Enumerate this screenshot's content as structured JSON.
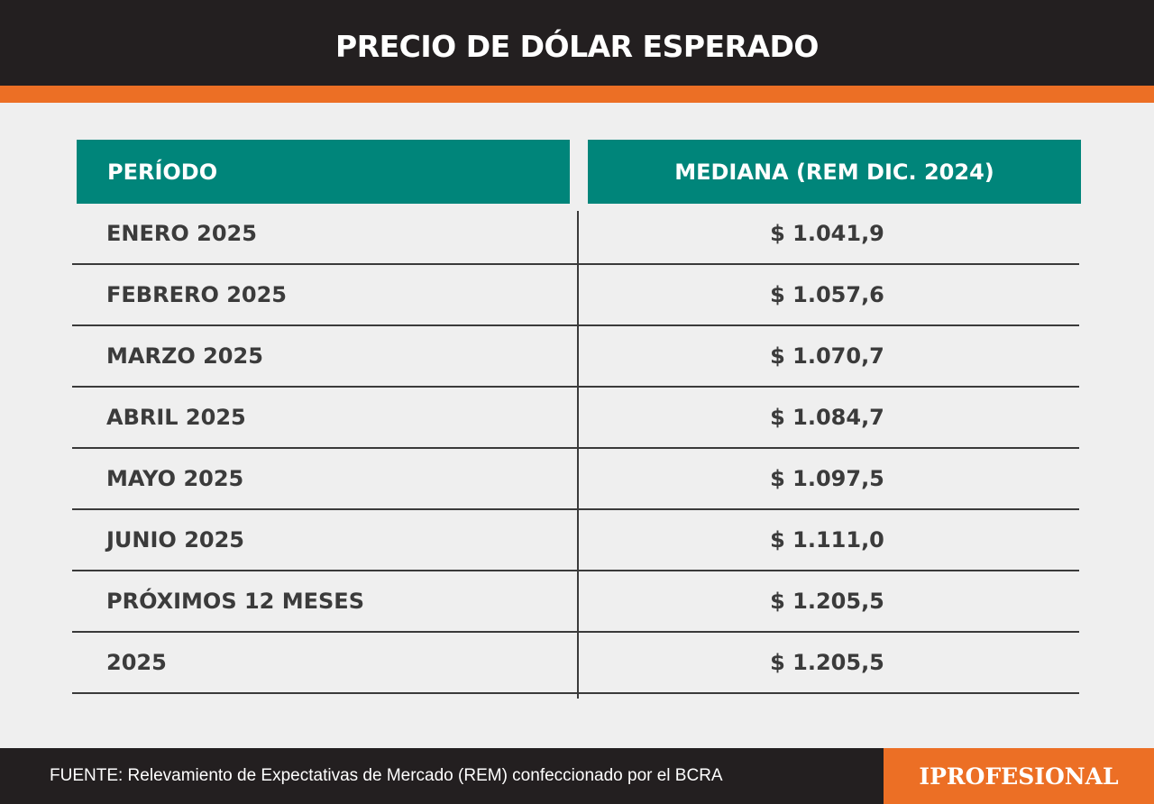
{
  "header": {
    "title": "PRECIO DE DÓLAR ESPERADO"
  },
  "chart_data": {
    "type": "table",
    "title": "PRECIO DE DÓLAR ESPERADO",
    "columns": [
      "PERÍODO",
      "MEDIANA (REM DIC. 2024)"
    ],
    "rows": [
      {
        "period": "ENERO 2025",
        "value": "$ 1.041,9"
      },
      {
        "period": "FEBRERO 2025",
        "value": "$ 1.057,6"
      },
      {
        "period": "MARZO 2025",
        "value": "$ 1.070,7"
      },
      {
        "period": "ABRIL 2025",
        "value": "$ 1.084,7"
      },
      {
        "period": "MAYO 2025",
        "value": "$ 1.097,5"
      },
      {
        "period": "JUNIO 2025",
        "value": "$ 1.111,0"
      },
      {
        "period": "PRÓXIMOS 12 MESES",
        "value": "$ 1.205,5"
      },
      {
        "period": "2025",
        "value": "$ 1.205,5"
      }
    ]
  },
  "footer": {
    "source": "FUENTE: Relevamiento de Expectativas de Mercado (REM) confeccionado por el BCRA",
    "brand": "IPROFESIONAL"
  },
  "colors": {
    "header_bg": "#231f20",
    "accent_orange": "#ec6f25",
    "table_header_teal": "#00857a",
    "background": "#efefef",
    "text": "#3b3b3b"
  }
}
